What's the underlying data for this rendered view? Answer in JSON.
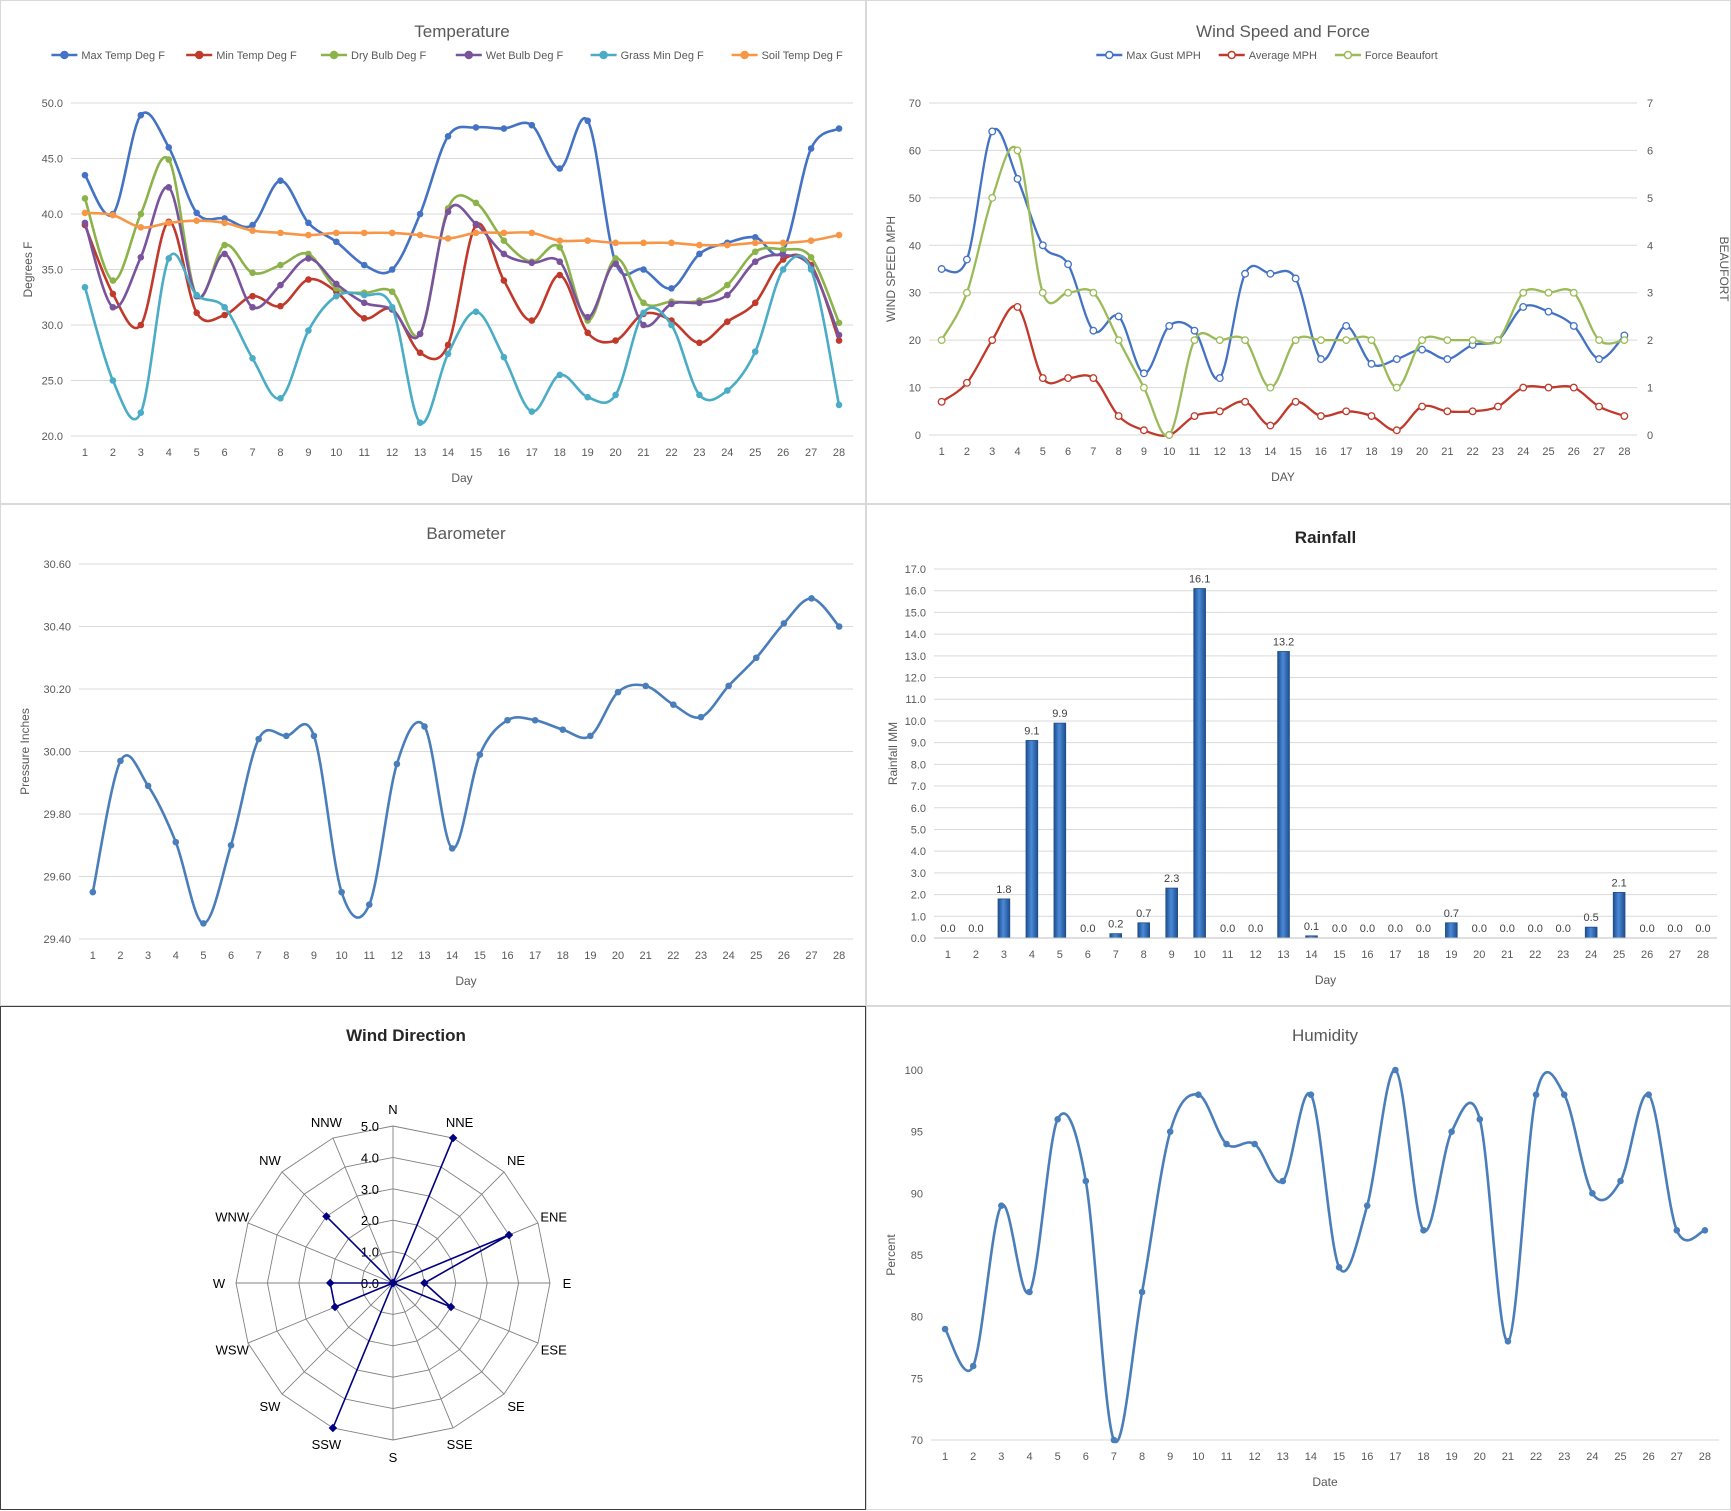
{
  "chart_data": [
    {
      "id": "temperature",
      "type": "line",
      "title": "Temperature",
      "xlabel": "Day",
      "ylabel": "Degrees F",
      "categories": [
        "1",
        "2",
        "3",
        "4",
        "5",
        "6",
        "7",
        "8",
        "9",
        "10",
        "11",
        "12",
        "13",
        "14",
        "15",
        "16",
        "17",
        "18",
        "19",
        "20",
        "21",
        "22",
        "23",
        "24",
        "25",
        "26",
        "27",
        "28"
      ],
      "ylim": [
        20,
        50
      ],
      "ytick_labels": [
        "20.0",
        "25.0",
        "30.0",
        "35.0",
        "40.0",
        "45.0",
        "50.0"
      ],
      "grid": true,
      "legend": "top",
      "series": [
        {
          "name": "Max Temp Deg F",
          "color": "#4472c4",
          "values": [
            43.5,
            40.0,
            48.9,
            46.0,
            40.1,
            39.6,
            39.0,
            43.0,
            39.2,
            37.5,
            35.4,
            35.0,
            40.0,
            47.0,
            47.8,
            47.7,
            48.0,
            44.1,
            48.4,
            35.6,
            35.0,
            33.3,
            36.4,
            37.4,
            37.9,
            36.7,
            45.9,
            47.7
          ]
        },
        {
          "name": "Min Temp Deg F",
          "color": "#c0392b",
          "values": [
            39.0,
            32.8,
            30.0,
            39.3,
            31.1,
            30.9,
            32.6,
            31.7,
            34.1,
            33.0,
            30.6,
            31.4,
            27.5,
            28.2,
            39.0,
            34.0,
            30.4,
            34.5,
            29.3,
            28.6,
            31.0,
            30.4,
            28.4,
            30.3,
            32.0,
            35.9,
            35.4,
            28.6
          ]
        },
        {
          "name": "Dry Bulb Deg F",
          "color": "#8cb24a",
          "values": [
            41.4,
            34.0,
            40.0,
            44.9,
            32.6,
            37.2,
            34.7,
            35.4,
            36.4,
            33.3,
            32.9,
            33.0,
            29.2,
            40.5,
            41.0,
            37.6,
            35.7,
            37.0,
            30.4,
            36.0,
            32.0,
            32.1,
            32.2,
            33.6,
            36.6,
            36.8,
            36.1,
            30.2
          ]
        },
        {
          "name": "Wet Bulb Deg F",
          "color": "#7a539d",
          "values": [
            39.2,
            31.6,
            36.1,
            42.4,
            32.6,
            36.4,
            31.6,
            33.6,
            36.0,
            33.7,
            32.0,
            31.4,
            29.2,
            40.2,
            39.1,
            36.4,
            35.6,
            35.7,
            30.7,
            35.5,
            30.0,
            31.9,
            32.0,
            32.7,
            35.7,
            36.3,
            35.2,
            29.1
          ]
        },
        {
          "name": "Grass Min Deg F",
          "color": "#4bacc6",
          "values": [
            33.4,
            25.0,
            22.1,
            36.0,
            32.7,
            31.6,
            27.0,
            23.4,
            29.5,
            32.6,
            32.7,
            31.6,
            21.2,
            27.4,
            31.2,
            27.1,
            22.2,
            25.5,
            23.5,
            23.7,
            31.1,
            30.0,
            23.7,
            24.1,
            27.6,
            35.0,
            35.0,
            22.8
          ]
        },
        {
          "name": "Soil Temp Deg F",
          "color": "#f79646",
          "values": [
            40.1,
            39.9,
            38.8,
            39.2,
            39.4,
            39.2,
            38.5,
            38.3,
            38.1,
            38.3,
            38.3,
            38.3,
            38.1,
            37.8,
            38.3,
            38.3,
            38.3,
            37.6,
            37.6,
            37.4,
            37.4,
            37.4,
            37.2,
            37.2,
            37.4,
            37.4,
            37.6,
            38.1
          ]
        }
      ]
    },
    {
      "id": "wind",
      "type": "line",
      "title": "Wind Speed and Force",
      "xlabel": "DAY",
      "ylabel": "WIND SPEED MPH",
      "y2label": "BEAUFORT",
      "categories": [
        "1",
        "2",
        "3",
        "4",
        "5",
        "6",
        "7",
        "8",
        "9",
        "10",
        "11",
        "12",
        "13",
        "14",
        "15",
        "16",
        "17",
        "18",
        "19",
        "20",
        "21",
        "22",
        "23",
        "24",
        "25",
        "26",
        "27",
        "28"
      ],
      "ylim": [
        0,
        70
      ],
      "y2lim": [
        0,
        7
      ],
      "ytick_labels": [
        "0",
        "10",
        "20",
        "30",
        "40",
        "50",
        "60",
        "70"
      ],
      "y2tick_labels": [
        "0",
        "1",
        "2",
        "3",
        "4",
        "5",
        "6",
        "7"
      ],
      "grid": true,
      "legend": "top",
      "series": [
        {
          "name": "Max Gust MPH",
          "color": "#4472c4",
          "axis": "left",
          "values": [
            35,
            37,
            64,
            54,
            40,
            36,
            22,
            25,
            13,
            23,
            22,
            12,
            34,
            34,
            33,
            16,
            23,
            15,
            16,
            18,
            16,
            19,
            20,
            27,
            26,
            23,
            16,
            21
          ]
        },
        {
          "name": "Average MPH",
          "color": "#c0392b",
          "axis": "left",
          "values": [
            7,
            11,
            20,
            27,
            12,
            12,
            12,
            4,
            1,
            0,
            4,
            5,
            7,
            2,
            7,
            4,
            5,
            4,
            1,
            6,
            5,
            5,
            6,
            10,
            10,
            10,
            6,
            4
          ]
        },
        {
          "name": "Force Beaufort",
          "color": "#9bbb59",
          "axis": "right",
          "values": [
            2,
            3,
            5,
            6,
            3,
            3,
            3,
            2,
            1,
            0,
            2,
            2,
            2,
            1,
            2,
            2,
            2,
            2,
            1,
            2,
            2,
            2,
            2,
            3,
            3,
            3,
            2,
            2
          ]
        }
      ]
    },
    {
      "id": "barometer",
      "type": "line",
      "title": "Barometer",
      "xlabel": "Day",
      "ylabel": "Pressure Inches",
      "categories": [
        "1",
        "2",
        "3",
        "4",
        "5",
        "6",
        "7",
        "8",
        "9",
        "10",
        "11",
        "12",
        "13",
        "14",
        "15",
        "16",
        "17",
        "18",
        "19",
        "20",
        "21",
        "22",
        "23",
        "24",
        "25",
        "26",
        "27",
        "28"
      ],
      "ylim": [
        29.4,
        30.6
      ],
      "ytick_labels": [
        "29.40",
        "29.60",
        "29.80",
        "30.00",
        "30.20",
        "30.40",
        "30.60"
      ],
      "grid": true,
      "series": [
        {
          "name": "",
          "color": "#4a7ebb",
          "values": [
            29.55,
            29.97,
            29.89,
            29.71,
            29.45,
            29.7,
            30.04,
            30.05,
            30.05,
            29.55,
            29.51,
            29.96,
            30.08,
            29.69,
            29.99,
            30.1,
            30.1,
            30.07,
            30.05,
            30.19,
            30.21,
            30.15,
            30.11,
            30.21,
            30.3,
            30.41,
            30.49,
            30.4
          ]
        }
      ]
    },
    {
      "id": "rainfall",
      "type": "bar",
      "title": "Rainfall",
      "xlabel": "Day",
      "ylabel": "Rainfall MM",
      "categories": [
        "1",
        "2",
        "3",
        "4",
        "5",
        "6",
        "7",
        "8",
        "9",
        "10",
        "11",
        "12",
        "13",
        "14",
        "15",
        "16",
        "17",
        "18",
        "19",
        "20",
        "21",
        "22",
        "23",
        "24",
        "25",
        "26",
        "27",
        "28"
      ],
      "ylim": [
        0,
        17
      ],
      "ytick_labels": [
        "0.0",
        "1.0",
        "2.0",
        "3.0",
        "4.0",
        "5.0",
        "6.0",
        "7.0",
        "8.0",
        "9.0",
        "10.0",
        "11.0",
        "12.0",
        "13.0",
        "14.0",
        "15.0",
        "16.0",
        "17.0"
      ],
      "grid": true,
      "series": [
        {
          "name": "",
          "color": "#2e6fbd",
          "values": [
            0.0,
            0.0,
            1.8,
            9.1,
            9.9,
            0.0,
            0.2,
            0.7,
            2.3,
            16.1,
            0.0,
            0.0,
            13.2,
            0.1,
            0.0,
            0.0,
            0.0,
            0.0,
            0.7,
            0.0,
            0.0,
            0.0,
            0.0,
            0.5,
            2.1,
            0.0,
            0.0,
            0.0
          ]
        }
      ],
      "data_labels": [
        "0.0",
        "0.0",
        "1.8",
        "9.1",
        "9.9",
        "0.0",
        "0.2",
        "0.7",
        "2.3",
        "16.1",
        "0.0",
        "0.0",
        "13.2",
        "0.1",
        "0.0",
        "0.0",
        "0.0",
        "0.0",
        "0.7",
        "0.0",
        "0.0",
        "0.0",
        "0.0",
        "0.5",
        "2.1",
        "0.0",
        "0.0",
        "0.0"
      ]
    },
    {
      "id": "wind_direction",
      "type": "radar",
      "title": "Wind Direction",
      "categories": [
        "N",
        "NNE",
        "NE",
        "ENE",
        "E",
        "ESE",
        "SE",
        "SSE",
        "S",
        "SSW",
        "SW",
        "WSW",
        "W",
        "WNW",
        "NW",
        "NNW"
      ],
      "rlim": [
        0,
        5
      ],
      "rtick_labels": [
        "0.0",
        "1.0",
        "2.0",
        "3.0",
        "4.0",
        "5.0"
      ],
      "series": [
        {
          "name": "",
          "color": "#000080",
          "values": [
            0,
            5,
            0,
            4,
            1,
            2,
            0,
            0,
            0,
            5,
            0,
            2,
            2,
            0,
            3,
            0
          ]
        }
      ]
    },
    {
      "id": "humidity",
      "type": "line",
      "title": "Humidity",
      "xlabel": "Date",
      "ylabel": "Percent",
      "categories": [
        "1",
        "2",
        "3",
        "4",
        "5",
        "6",
        "7",
        "8",
        "9",
        "10",
        "11",
        "12",
        "13",
        "14",
        "15",
        "16",
        "17",
        "18",
        "19",
        "20",
        "21",
        "22",
        "23",
        "24",
        "25",
        "26",
        "27",
        "28"
      ],
      "ylim": [
        70,
        100
      ],
      "ytick_labels": [
        "70",
        "75",
        "80",
        "85",
        "90",
        "95",
        "100"
      ],
      "grid": false,
      "series": [
        {
          "name": "",
          "color": "#4a7ebb",
          "values": [
            79,
            76,
            89,
            82,
            96,
            91,
            70,
            82,
            95,
            98,
            94,
            94,
            91,
            98,
            84,
            89,
            100,
            87,
            95,
            96,
            78,
            98,
            98,
            90,
            91,
            98,
            87,
            87
          ]
        }
      ]
    }
  ]
}
